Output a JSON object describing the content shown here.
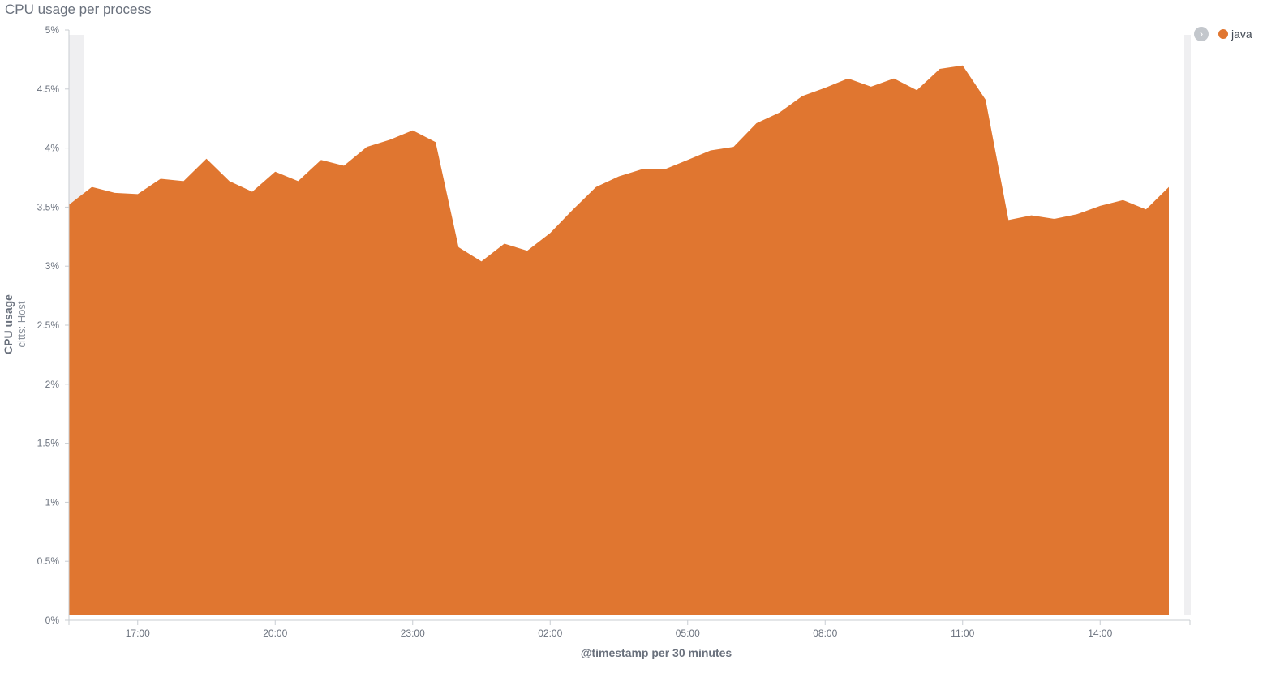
{
  "title": "CPU usage per process",
  "colors": {
    "series": "#e07630",
    "axis": "#6a717d",
    "band": "#efeff1"
  },
  "legend": {
    "toggle_icon": "chevron-right-icon",
    "items": [
      {
        "label": "java"
      }
    ]
  },
  "chart_data": {
    "type": "area",
    "title": "CPU usage per process",
    "xlabel": "@timestamp per 30 minutes",
    "ylabel": "CPU usage",
    "ylabel_sub": "citts: Host",
    "ylim": [
      0,
      5
    ],
    "y_unit": "%",
    "y_ticks": [
      "0%",
      "0.5%",
      "1%",
      "1.5%",
      "2%",
      "2.5%",
      "3%",
      "3.5%",
      "4%",
      "4.5%",
      "5%"
    ],
    "x_ticks": [
      "17:00",
      "20:00",
      "23:00",
      "02:00",
      "05:00",
      "08:00",
      "11:00",
      "14:00"
    ],
    "x": [
      "15:30",
      "16:00",
      "16:30",
      "17:00",
      "17:30",
      "18:00",
      "18:30",
      "19:00",
      "19:30",
      "20:00",
      "20:30",
      "21:00",
      "21:30",
      "22:00",
      "22:30",
      "23:00",
      "23:30",
      "00:00",
      "00:30",
      "01:00",
      "01:30",
      "02:00",
      "02:30",
      "03:00",
      "03:30",
      "04:00",
      "04:30",
      "05:00",
      "05:30",
      "06:00",
      "06:30",
      "07:00",
      "07:30",
      "08:00",
      "08:30",
      "09:00",
      "09:30",
      "10:00",
      "10:30",
      "11:00",
      "11:30",
      "12:00",
      "12:30",
      "13:00",
      "13:30",
      "14:00",
      "14:30",
      "15:00",
      "15:30"
    ],
    "series": [
      {
        "name": "java",
        "values": [
          3.52,
          3.67,
          3.62,
          3.61,
          3.74,
          3.72,
          3.91,
          3.72,
          3.63,
          3.8,
          3.72,
          3.9,
          3.85,
          4.01,
          4.07,
          4.15,
          4.05,
          3.16,
          3.04,
          3.19,
          3.13,
          3.28,
          3.48,
          3.67,
          3.76,
          3.82,
          3.82,
          3.9,
          3.98,
          4.01,
          4.21,
          4.3,
          4.44,
          4.51,
          4.59,
          4.52,
          4.59,
          4.49,
          4.67,
          4.7,
          4.41,
          3.39,
          3.43,
          3.4,
          3.44,
          3.51,
          3.56,
          3.48,
          3.67
        ]
      }
    ],
    "legend_position": "top-right",
    "grid": false
  }
}
